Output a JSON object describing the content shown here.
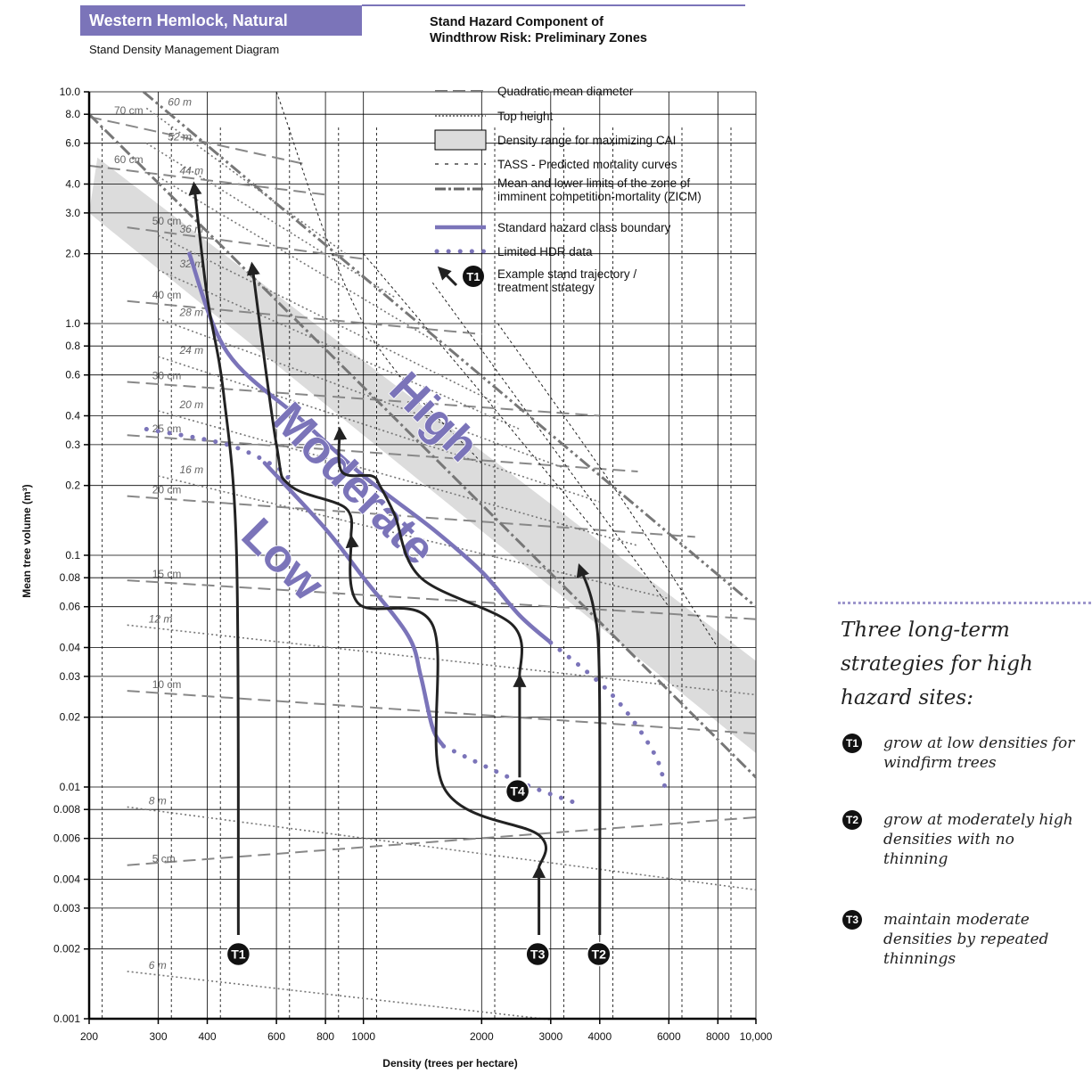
{
  "header": {
    "title": "Western Hemlock, Natural",
    "subtitle": "Stand Density Management Diagram",
    "chart_title_line1": "Stand Hazard Component of",
    "chart_title_line2": "Windthrow Risk: Preliminary Zones"
  },
  "colors": {
    "accent": "#7b74b9",
    "zone": "#dcdcdc",
    "trajectory": "#222222",
    "grid": "#000000"
  },
  "legend": [
    {
      "label": "Quadratic mean diameter",
      "style": "longdash"
    },
    {
      "label": "Top height",
      "style": "dotted"
    },
    {
      "label": "Density range for maximizing CAI",
      "style": "box"
    },
    {
      "label": "TASS - Predicted mortality curves",
      "style": "shortdash"
    },
    {
      "label": "Mean and lower limits of the zone of imminent competition-mortality (ZICM)",
      "style": "dashdot"
    },
    {
      "label": "Standard hazard class boundary",
      "style": "purple-solid"
    },
    {
      "label": "Limited HDR data",
      "style": "purple-dots"
    },
    {
      "label": "Example stand trajectory / treatment strategy",
      "style": "arrow"
    }
  ],
  "legend_badge": "T1",
  "zone_labels": [
    "High",
    "Moderate",
    "Low"
  ],
  "sidebar": {
    "title": "Three long-term strategies for high hazard sites:",
    "items": [
      {
        "badge": "T1",
        "text": "grow at low densities for windfirm trees"
      },
      {
        "badge": "T2",
        "text": "grow at moderately high densities with no thinning"
      },
      {
        "badge": "T3",
        "text": "maintain moderate densities by repeated thinnings"
      }
    ]
  },
  "chart_data": {
    "type": "line",
    "xlabel": "Density (trees per hectare)",
    "ylabel": "Mean tree volume (m³)",
    "x_scale": "log",
    "y_scale": "log",
    "xlim": [
      200,
      10000
    ],
    "ylim": [
      0.001,
      10
    ],
    "x_ticks": [
      {
        "v": 200,
        "l": "200"
      },
      {
        "v": 300,
        "l": "300"
      },
      {
        "v": 400,
        "l": "400"
      },
      {
        "v": 600,
        "l": "600"
      },
      {
        "v": 800,
        "l": "800"
      },
      {
        "v": 1000,
        "l": "1000"
      },
      {
        "v": 2000,
        "l": "2000"
      },
      {
        "v": 3000,
        "l": "3000"
      },
      {
        "v": 4000,
        "l": "4000"
      },
      {
        "v": 6000,
        "l": "6000"
      },
      {
        "v": 8000,
        "l": "8000"
      },
      {
        "v": 10000,
        "l": "10,000"
      }
    ],
    "y_ticks": [
      {
        "v": 0.001,
        "l": "0.001"
      },
      {
        "v": 0.002,
        "l": "0.002"
      },
      {
        "v": 0.003,
        "l": "0.003"
      },
      {
        "v": 0.004,
        "l": "0.004"
      },
      {
        "v": 0.006,
        "l": "0.006"
      },
      {
        "v": 0.008,
        "l": "0.008"
      },
      {
        "v": 0.01,
        "l": "0.01"
      },
      {
        "v": 0.02,
        "l": "0.02"
      },
      {
        "v": 0.03,
        "l": "0.03"
      },
      {
        "v": 0.04,
        "l": "0.04"
      },
      {
        "v": 0.06,
        "l": "0.06"
      },
      {
        "v": 0.08,
        "l": "0.08"
      },
      {
        "v": 0.1,
        "l": "0.1"
      },
      {
        "v": 0.2,
        "l": "0.2"
      },
      {
        "v": 0.3,
        "l": "0.3"
      },
      {
        "v": 0.4,
        "l": "0.4"
      },
      {
        "v": 0.6,
        "l": "0.6"
      },
      {
        "v": 0.8,
        "l": "0.8"
      },
      {
        "v": 1.0,
        "l": "1.0"
      },
      {
        "v": 2.0,
        "l": "2.0"
      },
      {
        "v": 3.0,
        "l": "3.0"
      },
      {
        "v": 4.0,
        "l": "4.0"
      },
      {
        "v": 6.0,
        "l": "6.0"
      },
      {
        "v": 8.0,
        "l": "8.0"
      },
      {
        "v": 10.0,
        "l": "10.0"
      }
    ],
    "zicm_mean": [
      [
        275,
        10
      ],
      [
        10000,
        0.06
      ]
    ],
    "zicm_lower": [
      [
        200,
        8
      ],
      [
        10000,
        0.011
      ]
    ],
    "cai_band": [
      [
        [
          210,
          5.2
        ],
        [
          10000,
          0.035
        ]
      ],
      [
        [
          200,
          3.0
        ],
        [
          10000,
          0.014
        ]
      ]
    ],
    "dbh_lines": [
      {
        "label": "70 cm",
        "points": [
          [
            200,
            7.8
          ],
          [
            700,
            4.9
          ]
        ]
      },
      {
        "label": "60 cm",
        "points": [
          [
            200,
            4.8
          ],
          [
            800,
            3.6
          ]
        ]
      },
      {
        "label": "50 cm",
        "points": [
          [
            250,
            2.6
          ],
          [
            1000,
            1.9
          ]
        ]
      },
      {
        "label": "40 cm",
        "points": [
          [
            250,
            1.25
          ],
          [
            2000,
            0.9
          ]
        ]
      },
      {
        "label": "30 cm",
        "points": [
          [
            250,
            0.56
          ],
          [
            4000,
            0.4
          ]
        ]
      },
      {
        "label": "25 cm",
        "points": [
          [
            250,
            0.33
          ],
          [
            5000,
            0.23
          ]
        ]
      },
      {
        "label": "20 cm",
        "points": [
          [
            250,
            0.18
          ],
          [
            7000,
            0.12
          ]
        ]
      },
      {
        "label": "15 cm",
        "points": [
          [
            250,
            0.078
          ],
          [
            10000,
            0.053
          ]
        ]
      },
      {
        "label": "10 cm",
        "points": [
          [
            250,
            0.026
          ],
          [
            10000,
            0.017
          ]
        ]
      },
      {
        "label": "5 cm",
        "points": [
          [
            250,
            0.0046
          ],
          [
            10000,
            0.0074
          ]
        ]
      }
    ],
    "height_lines": [
      {
        "label": "60 m",
        "points": [
          [
            280,
            8.5
          ],
          [
            900,
            2.0
          ]
        ]
      },
      {
        "label": "52 m",
        "points": [
          [
            280,
            6.0
          ],
          [
            1200,
            1.3
          ]
        ]
      },
      {
        "label": "44 m",
        "points": [
          [
            300,
            4.3
          ],
          [
            1500,
            0.85
          ]
        ]
      },
      {
        "label": "36 m",
        "points": [
          [
            300,
            2.4
          ],
          [
            2200,
            0.45
          ]
        ]
      },
      {
        "label": "32 m",
        "points": [
          [
            300,
            1.7
          ],
          [
            2500,
            0.35
          ]
        ]
      },
      {
        "label": "28 m",
        "points": [
          [
            300,
            1.05
          ],
          [
            3200,
            0.24
          ]
        ]
      },
      {
        "label": "24 m",
        "points": [
          [
            300,
            0.72
          ],
          [
            4000,
            0.17
          ]
        ]
      },
      {
        "label": "20 m",
        "points": [
          [
            300,
            0.42
          ],
          [
            5000,
            0.11
          ]
        ]
      },
      {
        "label": "16 m",
        "points": [
          [
            300,
            0.22
          ],
          [
            6000,
            0.065
          ]
        ]
      },
      {
        "label": "12 m",
        "points": [
          [
            250,
            0.05
          ],
          [
            10000,
            0.025
          ]
        ]
      },
      {
        "label": "8 m",
        "points": [
          [
            250,
            0.0082
          ],
          [
            10000,
            0.0036
          ]
        ]
      },
      {
        "label": "6 m",
        "points": [
          [
            250,
            0.0016
          ],
          [
            3000,
            0.00099
          ]
        ]
      }
    ],
    "hazard_upper": [
      [
        360,
        2.0
      ],
      [
        450,
        0.75
      ],
      [
        700,
        0.38
      ],
      [
        1000,
        0.22
      ],
      [
        1500,
        0.13
      ],
      [
        2000,
        0.085
      ],
      [
        2500,
        0.055
      ],
      [
        3000,
        0.042
      ]
    ],
    "hazard_lower": [
      [
        560,
        0.25
      ],
      [
        800,
        0.13
      ],
      [
        1000,
        0.08
      ],
      [
        1300,
        0.045
      ],
      [
        1400,
        0.03
      ],
      [
        1500,
        0.018
      ],
      [
        1600,
        0.015
      ]
    ],
    "hdr_dots": [
      {
        "points": [
          [
            280,
            0.35
          ],
          [
            450,
            0.3
          ],
          [
            600,
            0.24
          ],
          [
            650,
            0.21
          ]
        ]
      },
      {
        "points": [
          [
            1600,
            0.015
          ],
          [
            2500,
            0.0105
          ],
          [
            3500,
            0.0085
          ]
        ]
      },
      {
        "points": [
          [
            3000,
            0.042
          ],
          [
            4300,
            0.025
          ],
          [
            5500,
            0.014
          ],
          [
            5900,
            0.0095
          ]
        ]
      }
    ],
    "tass_curves": [
      {
        "points": [
          [
            600,
            10
          ],
          [
            1000,
            1.0
          ],
          [
            2000,
            0.25
          ]
        ]
      },
      {
        "points": [
          [
            1000,
            2.0
          ],
          [
            2000,
            0.5
          ],
          [
            4000,
            0.12
          ]
        ]
      },
      {
        "points": [
          [
            1500,
            1.5
          ],
          [
            3000,
            0.3
          ],
          [
            6000,
            0.06
          ]
        ]
      },
      {
        "points": [
          [
            2200,
            1.0
          ],
          [
            4500,
            0.18
          ],
          [
            8000,
            0.04
          ]
        ]
      }
    ],
    "trajectories": [
      {
        "name": "T1",
        "points": [
          [
            480,
            0.0023
          ],
          [
            475,
            0.1
          ],
          [
            440,
            0.5
          ],
          [
            400,
            1.3
          ],
          [
            370,
            4.0
          ]
        ]
      },
      {
        "name": "T2",
        "points": [
          [
            4000,
            0.0023
          ],
          [
            3990,
            0.03
          ],
          [
            3850,
            0.06
          ],
          [
            3550,
            0.09
          ]
        ]
      },
      {
        "name": "T3",
        "points": [
          [
            2800,
            0.0023
          ],
          [
            2800,
            0.0045
          ]
        ]
      },
      {
        "name": "T3",
        "points": [
          [
            2800,
            0.0045
          ],
          [
            2800,
            0.0062
          ],
          [
            1600,
            0.01
          ],
          [
            1500,
            0.05
          ],
          [
            970,
            0.062
          ],
          [
            930,
            0.12
          ]
        ]
      },
      {
        "name": "T3",
        "points": [
          [
            930,
            0.12
          ],
          [
            900,
            0.16
          ],
          [
            650,
            0.2
          ],
          [
            600,
            0.3
          ],
          [
            520,
            1.8
          ]
        ]
      },
      {
        "name": "T4",
        "points": [
          [
            2500,
            0.011
          ],
          [
            2500,
            0.03
          ]
        ]
      },
      {
        "name": "T4",
        "points": [
          [
            2500,
            0.03
          ],
          [
            2400,
            0.05
          ],
          [
            1400,
            0.08
          ],
          [
            1200,
            0.15
          ],
          [
            1100,
            0.2
          ],
          [
            1050,
            0.22
          ],
          [
            880,
            0.23
          ],
          [
            870,
            0.35
          ]
        ]
      }
    ],
    "badges": [
      {
        "label": "T1",
        "x": 480,
        "y": 0.0019
      },
      {
        "label": "T3",
        "x": 2780,
        "y": 0.0019
      },
      {
        "label": "T2",
        "x": 3980,
        "y": 0.0019
      },
      {
        "label": "T4",
        "x": 2470,
        "y": 0.0096
      }
    ]
  }
}
